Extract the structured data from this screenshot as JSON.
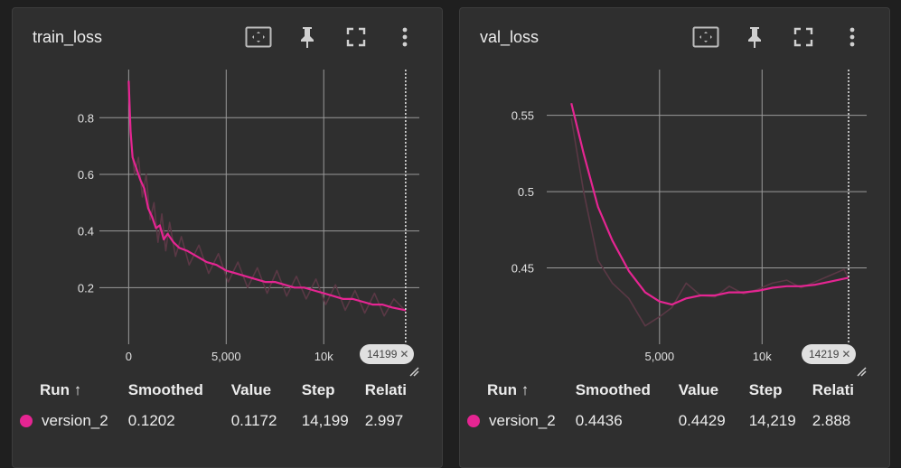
{
  "accent": "#e52592",
  "panels": [
    {
      "title": "train_loss",
      "step_tag": "14199",
      "columns": [
        "Run",
        "Smoothed",
        "Value",
        "Step",
        "Relati"
      ],
      "sort_arrow": "↑",
      "row": {
        "run": "version_2",
        "smoothed": "0.1202",
        "value": "0.1172",
        "step": "14,199",
        "relative": "2.997"
      }
    },
    {
      "title": "val_loss",
      "step_tag": "14219",
      "columns": [
        "Run",
        "Smoothed",
        "Value",
        "Step",
        "Relati"
      ],
      "sort_arrow": "↑",
      "row": {
        "run": "version_2",
        "smoothed": "0.4436",
        "value": "0.4429",
        "step": "14,219",
        "relative": "2.888"
      }
    }
  ],
  "chart_data": [
    {
      "type": "line",
      "title": "train_loss",
      "xlim": [
        -1500,
        14900
      ],
      "ylim": [
        0,
        0.97
      ],
      "x_ticks": [
        0,
        5000,
        10000
      ],
      "x_tick_labels": [
        "0",
        "5,000",
        "10k"
      ],
      "y_ticks": [
        0.2,
        0.4,
        0.6,
        0.8
      ],
      "y_tick_labels": [
        "0.2",
        "0.4",
        "0.6",
        "0.8"
      ],
      "grid": true,
      "cursor_step": 14199,
      "series": [
        {
          "role": "smoothed",
          "color": "#e52592",
          "x": [
            0,
            100,
            200,
            400,
            600,
            800,
            1000,
            1200,
            1400,
            1600,
            1800,
            2000,
            2300,
            2600,
            3000,
            3500,
            4000,
            4500,
            5000,
            5500,
            6000,
            6500,
            7000,
            7500,
            8000,
            8500,
            9000,
            9500,
            10000,
            10500,
            11000,
            11500,
            12000,
            12500,
            13000,
            13500,
            14199
          ],
          "y": [
            0.93,
            0.75,
            0.66,
            0.62,
            0.58,
            0.55,
            0.48,
            0.45,
            0.41,
            0.42,
            0.37,
            0.39,
            0.36,
            0.34,
            0.33,
            0.31,
            0.29,
            0.28,
            0.26,
            0.25,
            0.24,
            0.23,
            0.22,
            0.22,
            0.21,
            0.2,
            0.2,
            0.19,
            0.18,
            0.17,
            0.16,
            0.16,
            0.15,
            0.14,
            0.14,
            0.13,
            0.12
          ]
        },
        {
          "role": "raw",
          "color": "#5a3845",
          "x": [
            0,
            150,
            300,
            500,
            700,
            900,
            1100,
            1300,
            1500,
            1700,
            1900,
            2100,
            2400,
            2700,
            3100,
            3600,
            4100,
            4600,
            5100,
            5600,
            6100,
            6600,
            7100,
            7600,
            8100,
            8600,
            9100,
            9600,
            10100,
            10600,
            11100,
            11600,
            12100,
            12600,
            13100,
            13600,
            14199
          ],
          "y": [
            0.9,
            0.7,
            0.6,
            0.66,
            0.52,
            0.6,
            0.44,
            0.5,
            0.36,
            0.46,
            0.33,
            0.43,
            0.31,
            0.38,
            0.28,
            0.35,
            0.25,
            0.32,
            0.22,
            0.29,
            0.2,
            0.27,
            0.18,
            0.26,
            0.17,
            0.24,
            0.16,
            0.23,
            0.14,
            0.21,
            0.12,
            0.19,
            0.11,
            0.18,
            0.1,
            0.16,
            0.117
          ]
        }
      ]
    },
    {
      "type": "line",
      "title": "val_loss",
      "xlim": [
        -500,
        15100
      ],
      "ylim": [
        0.4,
        0.58
      ],
      "x_ticks": [
        5000,
        10000
      ],
      "x_tick_labels": [
        "5,000",
        "10k"
      ],
      "y_ticks": [
        0.45,
        0.5,
        0.55
      ],
      "y_tick_labels": [
        "0.45",
        "0.5",
        "0.55"
      ],
      "grid": true,
      "cursor_step": 14219,
      "series": [
        {
          "role": "smoothed",
          "color": "#e52592",
          "x": [
            700,
            1300,
            2000,
            2700,
            3500,
            4300,
            5000,
            5600,
            6300,
            7000,
            7700,
            8400,
            9100,
            9800,
            10500,
            11200,
            11900,
            12600,
            13300,
            14000,
            14219
          ],
          "y": [
            0.558,
            0.525,
            0.49,
            0.468,
            0.448,
            0.434,
            0.428,
            0.426,
            0.43,
            0.432,
            0.432,
            0.434,
            0.434,
            0.435,
            0.437,
            0.438,
            0.438,
            0.439,
            0.441,
            0.443,
            0.4436
          ]
        },
        {
          "role": "raw",
          "color": "#5a3845",
          "x": [
            700,
            1300,
            2000,
            2700,
            3500,
            4300,
            5000,
            5600,
            6300,
            7000,
            7700,
            8400,
            9100,
            9800,
            10500,
            11200,
            11900,
            12600,
            13300,
            14000,
            14219
          ],
          "y": [
            0.548,
            0.5,
            0.455,
            0.44,
            0.43,
            0.412,
            0.418,
            0.424,
            0.44,
            0.432,
            0.431,
            0.438,
            0.433,
            0.436,
            0.44,
            0.442,
            0.437,
            0.441,
            0.445,
            0.449,
            0.4429
          ]
        }
      ]
    }
  ]
}
